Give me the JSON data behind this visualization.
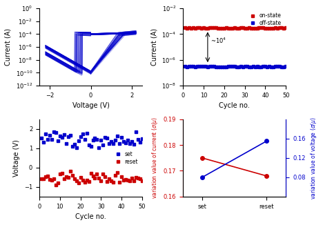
{
  "iv_voltage_range": [
    -2.5,
    2.5
  ],
  "iv_current_range": [
    1e-12,
    1.0
  ],
  "cycle_range": [
    0,
    50
  ],
  "on_state_current": 0.0003,
  "on_state_noise": 0.4,
  "off_state_current": 3e-07,
  "off_state_noise": 0.3,
  "set_voltage_mean": 1.45,
  "set_voltage_std": 0.2,
  "reset_voltage_mean": -0.55,
  "reset_voltage_std": 0.15,
  "variation_current_set": 0.175,
  "variation_current_reset": 0.168,
  "variation_voltage_set": 0.08,
  "variation_voltage_reset": 0.155,
  "blue_color": "#0000CC",
  "red_color": "#CC0000",
  "background_color": "#ffffff",
  "annotation_10_4": "~10$^4$"
}
